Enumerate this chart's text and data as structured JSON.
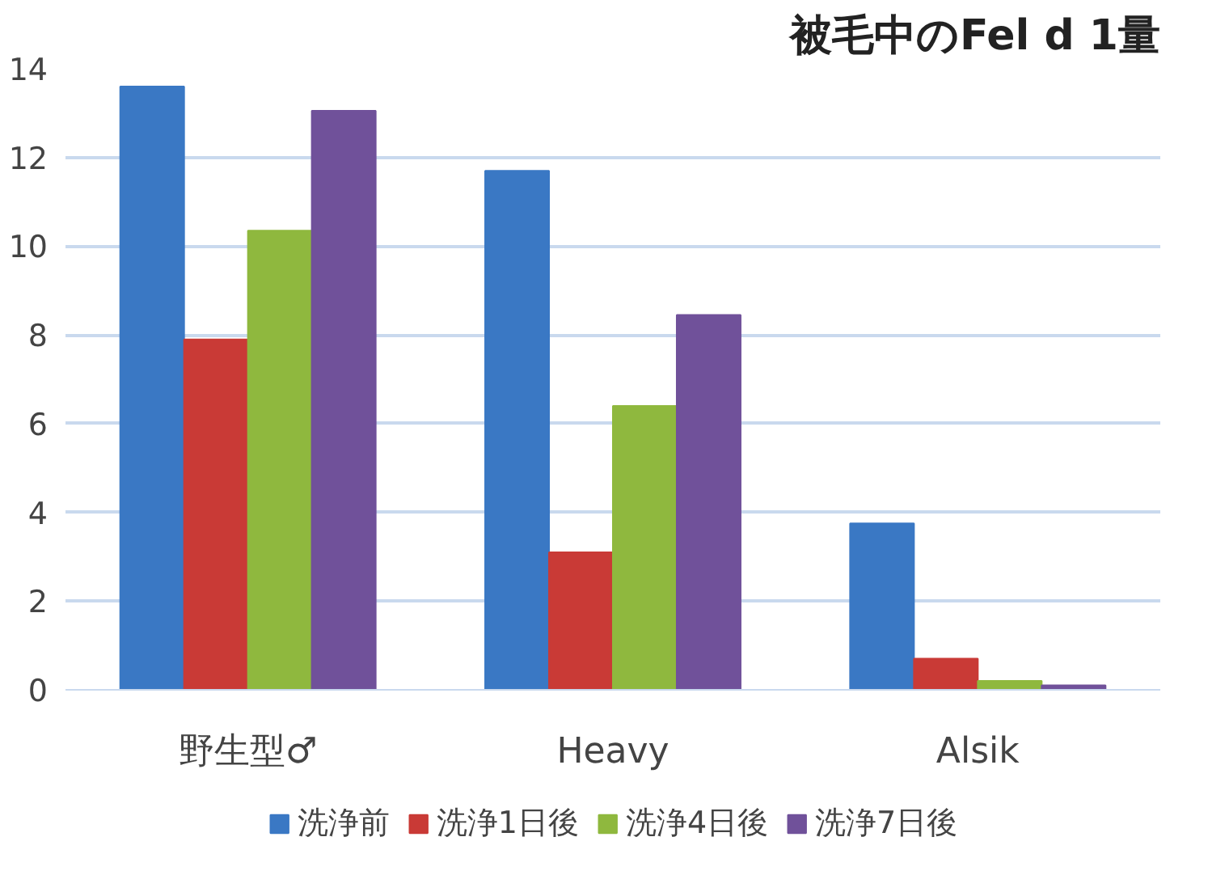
{
  "chart_data": {
    "type": "bar",
    "title": "被毛中のFel d 1量",
    "categories": [
      "野生型♂",
      "Heavy",
      "Alsik"
    ],
    "series": [
      {
        "name": "洗浄前",
        "color": "#3a78c4",
        "values": [
          13.6,
          11.7,
          3.75
        ]
      },
      {
        "name": "洗浄1日後",
        "color": "#c93a36",
        "values": [
          7.9,
          3.1,
          0.7
        ]
      },
      {
        "name": "洗浄4日後",
        "color": "#8fb83e",
        "values": [
          10.35,
          6.4,
          0.2
        ]
      },
      {
        "name": "洗浄7日後",
        "color": "#70519a",
        "values": [
          13.05,
          8.45,
          0.1
        ]
      }
    ],
    "ylim": [
      0,
      14
    ],
    "yticks": [
      0,
      2,
      4,
      6,
      8,
      10,
      12,
      14
    ],
    "grid": "y",
    "legend": "bottom"
  }
}
